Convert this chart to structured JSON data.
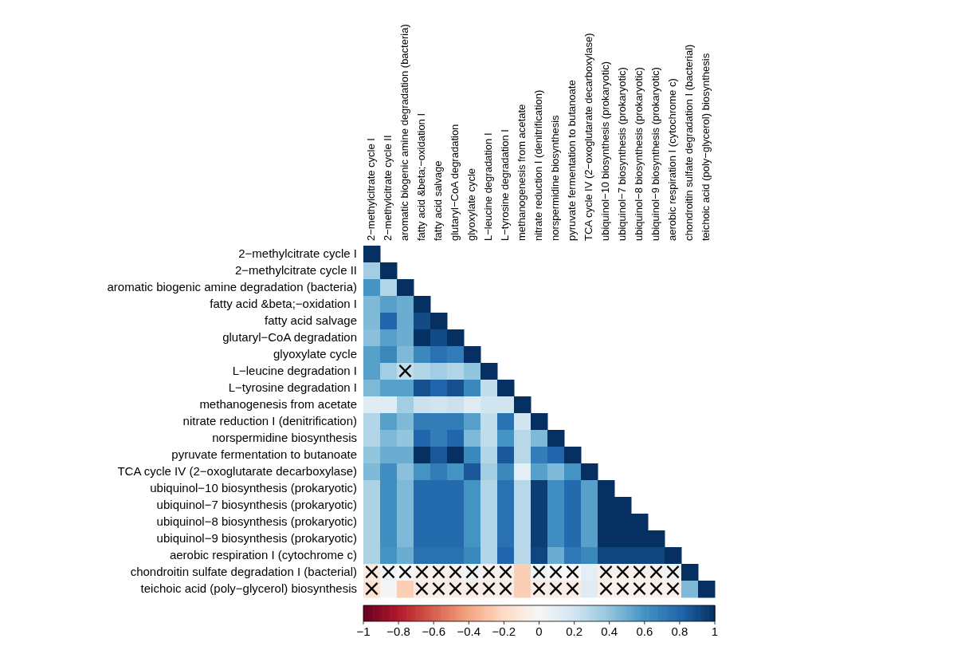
{
  "chart_data": {
    "type": "heatmap",
    "categories": [
      "2−methylcitrate cycle I",
      "2−methylcitrate cycle II",
      "aromatic biogenic amine degradation (bacteria)",
      "fatty acid &beta;−oxidation I",
      "fatty acid salvage",
      "glutaryl−CoA degradation",
      "glyoxylate cycle",
      "L−leucine degradation I",
      "L−tyrosine degradation I",
      "methanogenesis from acetate",
      "nitrate reduction I (denitrification)",
      "norspermidine biosynthesis",
      "pyruvate fermentation to butanoate",
      "TCA cycle IV (2−oxoglutarate decarboxylase)",
      "ubiquinol−10 biosynthesis (prokaryotic)",
      "ubiquinol−7 biosynthesis (prokaryotic)",
      "ubiquinol−8 biosynthesis (prokaryotic)",
      "ubiquinol−9 biosynthesis (prokaryotic)",
      "aerobic respiration I (cytochrome c)",
      "chondroitin sulfate degradation I (bacterial)",
      "teichoic acid (poly−glycerol) biosynthesis"
    ],
    "y_categories": [
      "2−methylcitrate cycle I",
      "2−methylcitrate cycle II",
      "aromatic biogenic amine degradation (bacteria)",
      "fatty acid &beta;−oxidation I",
      "fatty acid salvage",
      "glutaryl−CoA degradation",
      "glyoxylate cycle",
      "L−leucine degradation I",
      "L−tyrosine degradation I",
      "methanogenesis from acetate",
      "nitrate reduction I (denitrification)",
      "norspermidine biosynthesis",
      "pyruvate fermentation to butanoate",
      "TCA cycle IV (2−oxoglutarate decarboxylase)",
      "ubiquinol−10 biosynthesis (prokaryotic)",
      "ubiquinol−7 biosynthesis (prokaryotic)",
      "ubiquinol−8 biosynthesis (prokaryotic)",
      "ubiquinol−9 biosynthesis (prokaryotic)",
      "aerobic respiration I (cytochrome c)",
      "chondroitin sulfate degradation I (bacterial)",
      "teichoic acid (poly−glycerol) biosynthesis"
    ],
    "cells": [
      [
        1,
        null,
        null,
        null,
        null,
        null,
        null,
        null,
        null,
        null,
        null,
        null,
        null,
        null,
        null,
        null,
        null,
        null,
        null,
        null,
        null
      ],
      [
        0.35,
        1,
        null,
        null,
        null,
        null,
        null,
        null,
        null,
        null,
        null,
        null,
        null,
        null,
        null,
        null,
        null,
        null,
        null,
        null,
        null
      ],
      [
        0.6,
        0.3,
        1,
        null,
        null,
        null,
        null,
        null,
        null,
        null,
        null,
        null,
        null,
        null,
        null,
        null,
        null,
        null,
        null,
        null,
        null
      ],
      [
        0.45,
        0.55,
        0.5,
        1,
        null,
        null,
        null,
        null,
        null,
        null,
        null,
        null,
        null,
        null,
        null,
        null,
        null,
        null,
        null,
        null,
        null
      ],
      [
        0.45,
        0.8,
        0.5,
        0.9,
        1,
        null,
        null,
        null,
        null,
        null,
        null,
        null,
        null,
        null,
        null,
        null,
        null,
        null,
        null,
        null,
        null
      ],
      [
        0.42,
        0.55,
        0.5,
        1,
        0.9,
        1,
        null,
        null,
        null,
        null,
        null,
        null,
        null,
        null,
        null,
        null,
        null,
        null,
        null,
        null,
        null
      ],
      [
        0.55,
        0.65,
        0.45,
        0.65,
        0.75,
        0.7,
        1,
        null,
        null,
        null,
        null,
        null,
        null,
        null,
        null,
        null,
        null,
        null,
        null,
        null,
        null
      ],
      [
        0.55,
        0.35,
        0.25,
        0.3,
        0.35,
        0.3,
        0.4,
        1,
        null,
        null,
        null,
        null,
        null,
        null,
        null,
        null,
        null,
        null,
        null,
        null,
        null
      ],
      [
        0.45,
        0.55,
        0.55,
        0.88,
        0.8,
        0.88,
        0.65,
        0.25,
        1,
        null,
        null,
        null,
        null,
        null,
        null,
        null,
        null,
        null,
        null,
        null,
        null
      ],
      [
        0.12,
        0.12,
        0.35,
        0.22,
        0.2,
        0.22,
        0.12,
        0.2,
        0.2,
        1,
        null,
        null,
        null,
        null,
        null,
        null,
        null,
        null,
        null,
        null,
        null
      ],
      [
        0.3,
        0.55,
        0.45,
        0.7,
        0.7,
        0.7,
        0.55,
        0.25,
        0.75,
        0.2,
        1,
        null,
        null,
        null,
        null,
        null,
        null,
        null,
        null,
        null,
        null
      ],
      [
        0.3,
        0.45,
        0.4,
        0.8,
        0.7,
        0.8,
        0.45,
        0.25,
        0.6,
        0.28,
        0.45,
        1,
        null,
        null,
        null,
        null,
        null,
        null,
        null,
        null,
        null
      ],
      [
        0.4,
        0.5,
        0.5,
        1,
        0.85,
        1,
        0.65,
        0.3,
        0.85,
        0.28,
        0.7,
        0.8,
        1,
        null,
        null,
        null,
        null,
        null,
        null,
        null,
        null
      ],
      [
        0.45,
        0.62,
        0.42,
        0.6,
        0.7,
        0.6,
        0.85,
        0.35,
        0.65,
        0.1,
        0.55,
        0.45,
        0.6,
        1,
        null,
        null,
        null,
        null,
        null,
        null,
        null
      ],
      [
        0.32,
        0.62,
        0.45,
        0.78,
        0.78,
        0.78,
        0.6,
        0.3,
        0.75,
        0.28,
        0.95,
        0.62,
        0.78,
        0.55,
        1,
        null,
        null,
        null,
        null,
        null,
        null
      ],
      [
        0.32,
        0.62,
        0.45,
        0.78,
        0.78,
        0.78,
        0.6,
        0.3,
        0.75,
        0.28,
        0.95,
        0.62,
        0.78,
        0.55,
        1,
        1,
        null,
        null,
        null,
        null,
        null
      ],
      [
        0.32,
        0.62,
        0.45,
        0.78,
        0.78,
        0.78,
        0.6,
        0.3,
        0.75,
        0.28,
        0.95,
        0.62,
        0.78,
        0.55,
        1,
        1,
        1,
        null,
        null,
        null,
        null
      ],
      [
        0.32,
        0.62,
        0.45,
        0.78,
        0.78,
        0.78,
        0.6,
        0.3,
        0.75,
        0.28,
        0.95,
        0.62,
        0.78,
        0.55,
        1,
        1,
        1,
        1,
        null,
        null,
        null
      ],
      [
        0.32,
        0.6,
        0.5,
        0.75,
        0.75,
        0.75,
        0.65,
        0.3,
        0.8,
        0.28,
        0.92,
        0.5,
        0.72,
        0.65,
        0.92,
        0.92,
        0.92,
        0.92,
        1,
        null,
        null
      ],
      [
        -0.1,
        0.05,
        0,
        -0.05,
        -0.05,
        -0.05,
        0.05,
        -0.05,
        -0.05,
        -0.25,
        0.05,
        0,
        0,
        0.1,
        -0.05,
        -0.05,
        -0.05,
        -0.05,
        0.05,
        1,
        null
      ],
      [
        -0.15,
        0.02,
        -0.25,
        -0.08,
        -0.08,
        -0.08,
        -0.08,
        -0.08,
        -0.08,
        -0.25,
        -0.08,
        -0.08,
        -0.08,
        0.12,
        -0.05,
        -0.05,
        -0.05,
        -0.05,
        -0.05,
        0.45,
        1
      ]
    ],
    "cell_labels": [
      [
        null,
        null,
        null,
        null,
        null,
        null,
        null,
        null,
        null,
        null,
        null,
        null,
        null,
        null,
        null,
        null,
        null,
        null,
        null,
        null,
        null
      ],
      [
        null,
        null,
        null,
        null,
        null,
        null,
        null,
        null,
        null,
        null,
        null,
        null,
        null,
        null,
        null,
        null,
        null,
        null,
        null,
        null,
        null
      ],
      [
        null,
        null,
        null,
        null,
        null,
        null,
        null,
        null,
        null,
        null,
        null,
        null,
        null,
        null,
        null,
        null,
        null,
        null,
        null,
        null,
        null
      ],
      [
        null,
        null,
        null,
        null,
        null,
        null,
        null,
        null,
        null,
        null,
        null,
        null,
        null,
        null,
        null,
        null,
        null,
        null,
        null,
        null,
        null
      ],
      [
        null,
        null,
        null,
        null,
        null,
        null,
        null,
        null,
        null,
        null,
        null,
        null,
        null,
        null,
        null,
        null,
        null,
        null,
        null,
        null,
        null
      ],
      [
        null,
        null,
        null,
        null,
        null,
        null,
        null,
        null,
        null,
        null,
        null,
        null,
        null,
        null,
        null,
        null,
        null,
        null,
        null,
        null,
        null
      ],
      [
        null,
        null,
        null,
        null,
        null,
        null,
        null,
        null,
        null,
        null,
        null,
        null,
        null,
        null,
        null,
        null,
        null,
        null,
        null,
        null,
        null
      ],
      [
        null,
        null,
        "×",
        null,
        null,
        null,
        null,
        null,
        null,
        null,
        null,
        null,
        null,
        null,
        null,
        null,
        null,
        null,
        null,
        null,
        null
      ],
      [
        null,
        null,
        null,
        null,
        null,
        null,
        null,
        null,
        null,
        null,
        null,
        null,
        null,
        null,
        null,
        null,
        null,
        null,
        null,
        null,
        null
      ],
      [
        null,
        null,
        null,
        null,
        null,
        null,
        null,
        null,
        null,
        null,
        null,
        null,
        null,
        null,
        null,
        null,
        null,
        null,
        null,
        null,
        null
      ],
      [
        null,
        null,
        null,
        null,
        null,
        null,
        null,
        null,
        null,
        null,
        null,
        null,
        null,
        null,
        null,
        null,
        null,
        null,
        null,
        null,
        null
      ],
      [
        null,
        null,
        null,
        null,
        null,
        null,
        null,
        null,
        null,
        null,
        null,
        null,
        null,
        null,
        null,
        null,
        null,
        null,
        null,
        null,
        null
      ],
      [
        null,
        null,
        null,
        null,
        null,
        null,
        null,
        null,
        null,
        null,
        null,
        null,
        null,
        null,
        null,
        null,
        null,
        null,
        null,
        null,
        null
      ],
      [
        null,
        null,
        null,
        null,
        null,
        null,
        null,
        null,
        null,
        null,
        null,
        null,
        null,
        null,
        null,
        null,
        null,
        null,
        null,
        null,
        null
      ],
      [
        null,
        null,
        null,
        null,
        null,
        null,
        null,
        null,
        null,
        null,
        null,
        null,
        null,
        null,
        null,
        null,
        null,
        null,
        null,
        null,
        null
      ],
      [
        null,
        null,
        null,
        null,
        null,
        null,
        null,
        null,
        null,
        null,
        null,
        null,
        null,
        null,
        null,
        null,
        null,
        null,
        null,
        null,
        null
      ],
      [
        null,
        null,
        null,
        null,
        null,
        null,
        null,
        null,
        null,
        null,
        null,
        null,
        null,
        null,
        null,
        null,
        null,
        null,
        null,
        null,
        null
      ],
      [
        null,
        null,
        null,
        null,
        null,
        null,
        null,
        null,
        null,
        null,
        null,
        null,
        null,
        null,
        null,
        null,
        null,
        null,
        null,
        null,
        null
      ],
      [
        null,
        null,
        null,
        null,
        null,
        null,
        null,
        null,
        null,
        null,
        null,
        null,
        null,
        null,
        null,
        null,
        null,
        null,
        null,
        null,
        null
      ],
      [
        "×",
        "×",
        "×",
        "×",
        "×",
        "×",
        "×",
        "×",
        "×",
        null,
        "×",
        "×",
        "×",
        null,
        "×",
        "×",
        "×",
        "×",
        "×",
        null,
        null
      ],
      [
        "×",
        null,
        null,
        "×",
        "×",
        "×",
        "×",
        "×",
        "×",
        null,
        "×",
        "×",
        "×",
        null,
        "×",
        "×",
        "×",
        "×",
        "×",
        null,
        null
      ]
    ],
    "clim": [
      -1,
      1
    ],
    "cticks": [
      {
        "value": -1,
        "label": "−1"
      },
      {
        "value": -0.8,
        "label": "−0.8"
      },
      {
        "value": -0.6,
        "label": "−0.6"
      },
      {
        "value": -0.4,
        "label": "−0.4"
      },
      {
        "value": -0.2,
        "label": "−0.2"
      },
      0,
      0.2,
      0.4,
      0.6,
      0.8,
      1
    ]
  }
}
